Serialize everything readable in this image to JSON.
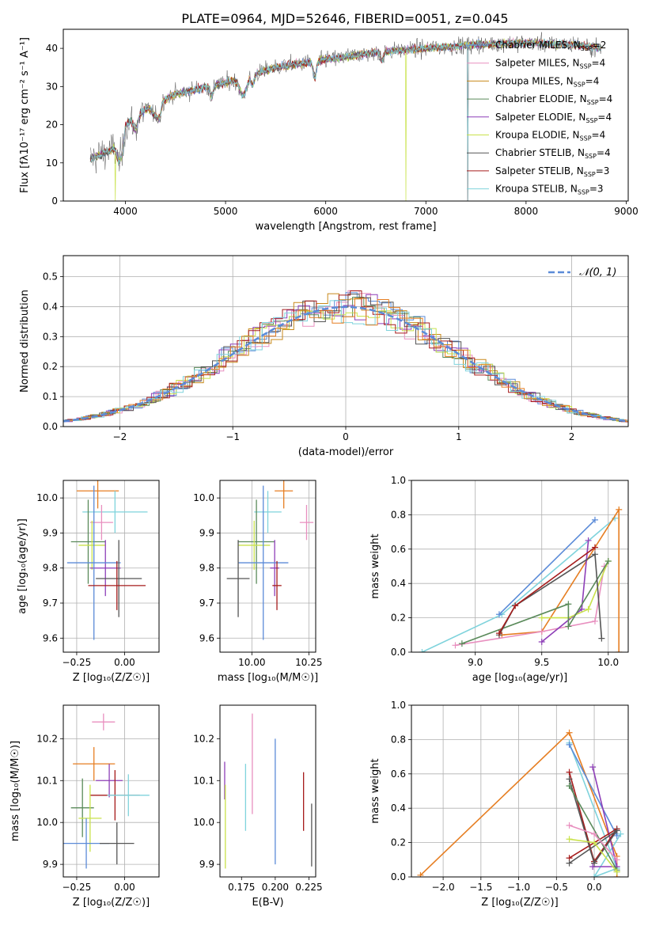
{
  "title": "PLATE=0964, MJD=52646, FIBERID=0051, z=0.045",
  "colors": [
    "#5b8bd8",
    "#e67e22",
    "#e88fbf",
    "#c8891b",
    "#5a8a5a",
    "#8e3fb8",
    "#c9e24b",
    "#555555",
    "#a61c1c",
    "#7fd3dc"
  ],
  "chart_data": [
    {
      "id": "spectrum",
      "type": "line",
      "title": "PLATE=0964, MJD=52646, FIBERID=0051, z=0.045",
      "xlabel": "wavelength [Angstrom, rest frame]",
      "ylabel": "Flux [fλ10⁻¹⁷ erg cm⁻² s⁻¹ A⁻¹]",
      "xlim": [
        3380,
        9020
      ],
      "ylim": [
        0,
        45
      ],
      "xticks": [
        4000,
        5000,
        6000,
        7000,
        8000,
        9000
      ],
      "yticks": [
        0,
        10,
        20,
        30,
        40
      ],
      "grid": false,
      "legend_position": "right",
      "continuum_x": [
        3650,
        3900,
        4000,
        4200,
        4500,
        5000,
        5500,
        6000,
        6500,
        7000,
        7500,
        8000,
        8500,
        8750
      ],
      "continuum_y": [
        11,
        14,
        20,
        24,
        28,
        31,
        35,
        37,
        39,
        40,
        41,
        41.5,
        41,
        40
      ],
      "dropouts": [
        {
          "series": "Kroupa ELODIE",
          "x": 3900
        },
        {
          "series": "Kroupa ELODIE",
          "x": 6800
        },
        {
          "series": "Chabrier STELIB",
          "x": 7420
        },
        {
          "series": "Salpeter STELIB",
          "x": 7420
        },
        {
          "series": "Kroupa STELIB",
          "x": 7420
        }
      ],
      "series": [
        {
          "name": "Chabrier MILES",
          "nssp": "2"
        },
        {
          "name": "Salpeter MILES",
          "nssp": "4"
        },
        {
          "name": "Kroupa MILES",
          "nssp": "4"
        },
        {
          "name": "Chabrier ELODIE",
          "nssp": "4"
        },
        {
          "name": "Salpeter ELODIE",
          "nssp": "4"
        },
        {
          "name": "Kroupa ELODIE",
          "nssp": "4"
        },
        {
          "name": "Chabrier STELIB",
          "nssp": "4"
        },
        {
          "name": "Salpeter STELIB",
          "nssp": "3"
        },
        {
          "name": "Kroupa STELIB",
          "nssp": "3"
        }
      ]
    },
    {
      "id": "residuals",
      "type": "line",
      "xlabel": "(data-model)/error",
      "ylabel": "Normed distribution",
      "xlim": [
        -2.5,
        2.5
      ],
      "ylim": [
        0,
        0.57
      ],
      "xticks": [
        -2,
        -1,
        0,
        1,
        2
      ],
      "yticks": [
        0.0,
        0.1,
        0.2,
        0.3,
        0.4,
        0.5
      ],
      "grid": true,
      "legend": "𝒩(0, 1)",
      "legend_position": "top-right",
      "bin_width": 0.1,
      "note": "step histograms, one per model, following the standard normal density"
    },
    {
      "id": "age-vs-Z",
      "type": "scatter",
      "xlabel": "Z [log₁₀(Z/Z☉)]",
      "ylabel": "age  [log₁₀(age/yr)]",
      "xlim": [
        -0.32,
        0.18
      ],
      "ylim": [
        9.56,
        10.05
      ],
      "xticks": [
        -0.25,
        0.0
      ],
      "xticklabels": [
        "−0.25",
        "0.00"
      ],
      "yticks": [
        9.6,
        9.7,
        9.8,
        9.9,
        10.0
      ],
      "grid": true,
      "points": [
        {
          "c": 1,
          "x": -0.14,
          "y": 10.02,
          "xerr": 0.11,
          "yerr": 0.05
        },
        {
          "c": 9,
          "x": -0.05,
          "y": 9.96,
          "xerr": 0.17,
          "yerr": 0.06
        },
        {
          "c": 2,
          "x": -0.12,
          "y": 9.93,
          "xerr": 0.06,
          "yerr": 0.05
        },
        {
          "c": 4,
          "x": -0.19,
          "y": 9.875,
          "xerr": 0.09,
          "yerr": 0.12
        },
        {
          "c": 6,
          "x": -0.17,
          "y": 9.865,
          "xerr": 0.07,
          "yerr": 0.07
        },
        {
          "c": 5,
          "x": -0.1,
          "y": 9.8,
          "xerr": 0.08,
          "yerr": 0.08
        },
        {
          "c": 0,
          "x": -0.16,
          "y": 9.815,
          "xerr": 0.14,
          "yerr": 0.22
        },
        {
          "c": 7,
          "x": -0.03,
          "y": 9.77,
          "xerr": 0.12,
          "yerr": 0.11
        },
        {
          "c": 8,
          "x": -0.04,
          "y": 9.75,
          "xerr": 0.15,
          "yerr": 0.07
        }
      ]
    },
    {
      "id": "age-vs-mass",
      "type": "scatter",
      "xlabel": "mass [log₁₀(M/M☉)]",
      "ylabel": "",
      "xlim": [
        9.86,
        10.28
      ],
      "ylim": [
        9.56,
        10.05
      ],
      "xticks": [
        10.0,
        10.25
      ],
      "xticklabels": [
        "10.00",
        "10.25"
      ],
      "yticks": [
        9.6,
        9.7,
        9.8,
        9.9,
        10.0
      ],
      "grid": true,
      "points": [
        {
          "c": 1,
          "x": 10.14,
          "y": 10.02,
          "xerr": 0.04,
          "yerr": 0.05
        },
        {
          "c": 9,
          "x": 10.07,
          "y": 9.96,
          "xerr": 0.06,
          "yerr": 0.06
        },
        {
          "c": 2,
          "x": 10.24,
          "y": 9.93,
          "xerr": 0.03,
          "yerr": 0.05
        },
        {
          "c": 4,
          "x": 10.02,
          "y": 9.875,
          "xerr": 0.08,
          "yerr": 0.12
        },
        {
          "c": 6,
          "x": 10.01,
          "y": 9.865,
          "xerr": 0.07,
          "yerr": 0.07
        },
        {
          "c": 5,
          "x": 10.1,
          "y": 9.8,
          "xerr": 0.02,
          "yerr": 0.08
        },
        {
          "c": 0,
          "x": 10.05,
          "y": 9.815,
          "xerr": 0.11,
          "yerr": 0.22
        },
        {
          "c": 7,
          "x": 9.94,
          "y": 9.77,
          "xerr": 0.05,
          "yerr": 0.11
        },
        {
          "c": 8,
          "x": 10.11,
          "y": 9.75,
          "xerr": 0.02,
          "yerr": 0.07
        }
      ]
    },
    {
      "id": "mass-weight-vs-age",
      "type": "line",
      "xlabel": "age  [log₁₀(age/yr)]",
      "ylabel": "mass weight",
      "xlim": [
        8.52,
        10.15
      ],
      "ylim": [
        0,
        1
      ],
      "xticks": [
        9.0,
        9.5,
        10.0
      ],
      "yticks": [
        0.0,
        0.2,
        0.4,
        0.6,
        0.8,
        1.0
      ],
      "grid": true,
      "series": [
        {
          "c": 9,
          "x": [
            8.6,
            9.2,
            10.05
          ],
          "y": [
            0.0,
            0.22,
            0.78
          ]
        },
        {
          "c": 0,
          "x": [
            9.18,
            9.9
          ],
          "y": [
            0.22,
            0.77
          ]
        },
        {
          "c": 1,
          "x": [
            9.2,
            9.5,
            10.08,
            10.08
          ],
          "y": [
            0.1,
            0.12,
            0.83,
            0.0
          ]
        },
        {
          "c": 2,
          "x": [
            8.85,
            9.5,
            9.9,
            9.97
          ],
          "y": [
            0.04,
            0.12,
            0.18,
            0.5
          ]
        },
        {
          "c": 5,
          "x": [
            9.5,
            9.8,
            9.85
          ],
          "y": [
            0.06,
            0.25,
            0.65
          ]
        },
        {
          "c": 6,
          "x": [
            9.5,
            9.7,
            9.85,
            10.0
          ],
          "y": [
            0.2,
            0.2,
            0.25,
            0.53
          ]
        },
        {
          "c": 4,
          "x": [
            8.9,
            9.7,
            9.7,
            10.0
          ],
          "y": [
            0.05,
            0.28,
            0.15,
            0.53
          ]
        },
        {
          "c": 7,
          "x": [
            9.18,
            9.3,
            9.9,
            9.95
          ],
          "y": [
            0.1,
            0.27,
            0.57,
            0.08
          ]
        },
        {
          "c": 8,
          "x": [
            9.18,
            9.3,
            9.9
          ],
          "y": [
            0.11,
            0.27,
            0.61
          ]
        }
      ]
    },
    {
      "id": "mass-vs-Z",
      "type": "scatter",
      "xlabel": "Z [log₁₀(Z/Z☉)]",
      "ylabel": "mass [log₁₀(M/M☉)]",
      "xlim": [
        -0.32,
        0.18
      ],
      "ylim": [
        9.87,
        10.28
      ],
      "xticks": [
        -0.25,
        0.0
      ],
      "xticklabels": [
        "−0.25",
        "0.00"
      ],
      "yticks": [
        9.9,
        10.0,
        10.1,
        10.2
      ],
      "grid": true,
      "points": [
        {
          "c": 2,
          "x": -0.11,
          "y": 10.24,
          "xerr": 0.06,
          "yerr": 0.02
        },
        {
          "c": 1,
          "x": -0.16,
          "y": 10.14,
          "xerr": 0.11,
          "yerr": 0.04
        },
        {
          "c": 5,
          "x": -0.08,
          "y": 10.1,
          "xerr": 0.07,
          "yerr": 0.04
        },
        {
          "c": 8,
          "x": -0.05,
          "y": 10.065,
          "xerr": 0.13,
          "yerr": 0.06
        },
        {
          "c": 9,
          "x": 0.02,
          "y": 10.065,
          "xerr": 0.11,
          "yerr": 0.05
        },
        {
          "c": 4,
          "x": -0.22,
          "y": 10.035,
          "xerr": 0.06,
          "yerr": 0.07
        },
        {
          "c": 6,
          "x": -0.18,
          "y": 10.01,
          "xerr": 0.06,
          "yerr": 0.08
        },
        {
          "c": 0,
          "x": -0.2,
          "y": 9.95,
          "xerr": 0.12,
          "yerr": 0.06
        },
        {
          "c": 7,
          "x": -0.04,
          "y": 9.95,
          "xerr": 0.09,
          "yerr": 0.05
        }
      ]
    },
    {
      "id": "mass-vs-EBV",
      "type": "scatter",
      "xlabel": "E(B-V)",
      "ylabel": "",
      "xlim": [
        0.159,
        0.23
      ],
      "ylim": [
        9.87,
        10.28
      ],
      "xticks": [
        0.175,
        0.2,
        0.225
      ],
      "xticklabels": [
        "0.175",
        "0.200",
        "0.225"
      ],
      "yticks": [
        9.9,
        10.0,
        10.1,
        10.2
      ],
      "grid": false,
      "points": [
        {
          "c": 5,
          "x": 0.1625,
          "y": 10.1,
          "yerr": 0.045
        },
        {
          "c": 6,
          "x": 0.163,
          "y": 9.99,
          "yerr": 0.1
        },
        {
          "c": 9,
          "x": 0.178,
          "y": 10.06,
          "yerr": 0.08
        },
        {
          "c": 2,
          "x": 0.183,
          "y": 10.14,
          "yerr": 0.12
        },
        {
          "c": 0,
          "x": 0.2,
          "y": 10.05,
          "yerr": 0.15
        },
        {
          "c": 8,
          "x": 0.221,
          "y": 10.05,
          "yerr": 0.07
        },
        {
          "c": 7,
          "x": 0.227,
          "y": 9.97,
          "yerr": 0.075
        }
      ]
    },
    {
      "id": "mass-weight-vs-Z",
      "type": "line",
      "xlabel": "Z [log₁₀(Z/Z☉)]",
      "ylabel": "mass weight",
      "xlim": [
        -2.42,
        0.45
      ],
      "ylim": [
        0,
        1
      ],
      "xticks": [
        -2.0,
        -1.5,
        -1.0,
        -0.5,
        0.0
      ],
      "yticks": [
        0.0,
        0.2,
        0.4,
        0.6,
        0.8,
        1.0
      ],
      "grid": true,
      "series": [
        {
          "c": 1,
          "x": [
            -2.3,
            -0.33,
            0.3,
            0.3
          ],
          "y": [
            0.01,
            0.84,
            0.12,
            0.0
          ]
        },
        {
          "c": 9,
          "x": [
            -0.33,
            0.3,
            0.0,
            0.35
          ],
          "y": [
            0.78,
            0.05,
            0.0,
            0.25
          ]
        },
        {
          "c": 0,
          "x": [
            -0.33,
            0.3,
            0.3
          ],
          "y": [
            0.77,
            0.24,
            0.27
          ]
        },
        {
          "c": 5,
          "x": [
            -0.02,
            0.3,
            -0.02
          ],
          "y": [
            0.64,
            0.06,
            0.06
          ]
        },
        {
          "c": 8,
          "x": [
            -0.33,
            0.0,
            0.3,
            -0.33
          ],
          "y": [
            0.61,
            0.09,
            0.28,
            0.11
          ]
        },
        {
          "c": 7,
          "x": [
            -0.33,
            0.0,
            0.3,
            -0.33
          ],
          "y": [
            0.57,
            0.08,
            0.27,
            0.08
          ]
        },
        {
          "c": 4,
          "x": [
            -0.33,
            0.3,
            0.3
          ],
          "y": [
            0.53,
            0.04,
            0.03
          ]
        },
        {
          "c": 6,
          "x": [
            -0.33,
            0.0,
            0.3
          ],
          "y": [
            0.22,
            0.2,
            0.03
          ]
        },
        {
          "c": 2,
          "x": [
            -0.33,
            0.0,
            0.3
          ],
          "y": [
            0.3,
            0.25,
            0.1
          ]
        }
      ]
    }
  ]
}
